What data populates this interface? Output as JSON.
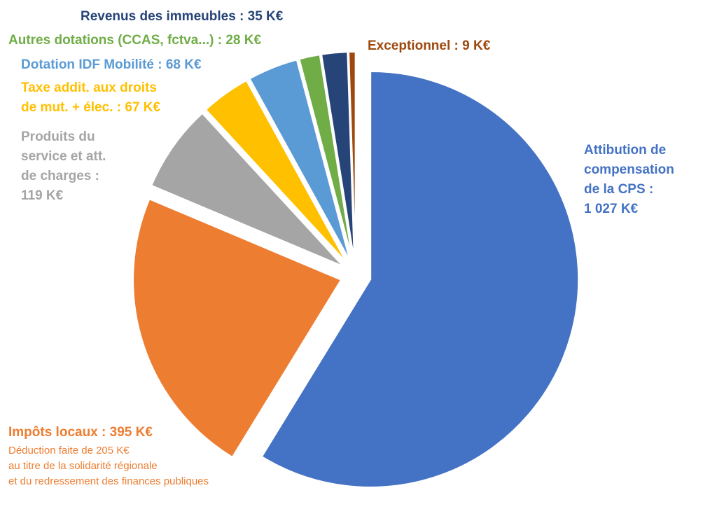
{
  "chart_data": {
    "type": "pie",
    "title": "",
    "slices": [
      {
        "name": "Attibution de compensation de la CPS",
        "value": 1027,
        "color": "#4472C4",
        "label_lines": [
          "Attibution de",
          "compensation",
          "de la CPS :",
          "1 027 K€"
        ]
      },
      {
        "name": "Impôts locaux",
        "value": 395,
        "color": "#ED7D31",
        "label_lines": [
          "Impôts locaux : 395 K€"
        ],
        "note_lines": [
          "Déduction faite de 205 K€",
          "au titre de la solidarité régionale",
          "et du redressement des finances publiques"
        ]
      },
      {
        "name": "Produits du service et att. de charges",
        "value": 119,
        "color": "#A5A5A5",
        "label_lines": [
          "Produits du",
          "service et att.",
          "de charges :",
          "119 K€"
        ]
      },
      {
        "name": "Taxe addit. aux droits de mut. + élec.",
        "value": 67,
        "color": "#FFC000",
        "label_lines": [
          "Taxe addit. aux droits",
          "de mut. + élec. : 67 K€"
        ]
      },
      {
        "name": "Dotation IDF Mobilité",
        "value": 68,
        "color": "#5B9BD5",
        "label_lines": [
          "Dotation IDF Mobilité : 68 K€"
        ]
      },
      {
        "name": "Autres dotations (CCAS, fctva...)",
        "value": 28,
        "color": "#70AD47",
        "label_lines": [
          "Autres dotations (CCAS, fctva...) : 28 K€"
        ]
      },
      {
        "name": "Revenus des immeubles",
        "value": 35,
        "color": "#264478",
        "label_lines": [
          "Revenus des immeubles : 35 K€"
        ]
      },
      {
        "name": "Exceptionnel",
        "value": 9,
        "color": "#9E480E",
        "label_lines": [
          "Exceptionnel : 9 K€"
        ]
      }
    ]
  }
}
